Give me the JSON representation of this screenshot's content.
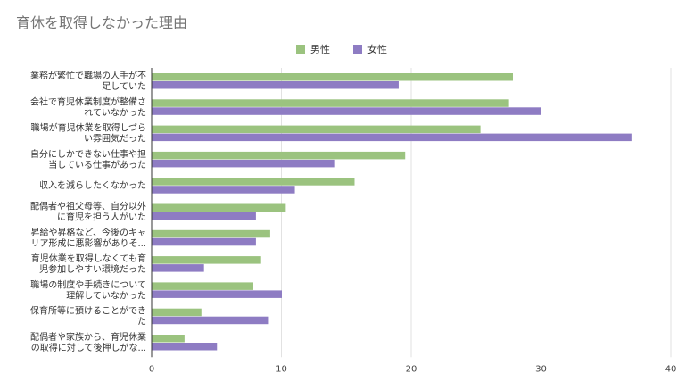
{
  "chart_data": {
    "type": "bar",
    "orientation": "horizontal",
    "title": "育休を取得しなかった理由",
    "categories": [
      [
        "業務が繁忙で職場の人手が不",
        "足していた"
      ],
      [
        "会社で育児休業制度が整備さ",
        "れていなかった"
      ],
      [
        "職場が育児休業を取得しづら",
        "い雰囲気だった"
      ],
      [
        "自分にしかできない仕事や担",
        "当している仕事があった"
      ],
      [
        "収入を減らしたくなかった"
      ],
      [
        "配偶者や祖父母等、自分以外",
        "に育児を担う人がいた"
      ],
      [
        "昇給や昇格など、今後のキャ",
        "リア形成に悪影響がありそ..."
      ],
      [
        "育児休業を取得しなくても育",
        "児参加しやすい環境だった"
      ],
      [
        "職場の制度や手続きについて",
        "理解していなかった"
      ],
      [
        "保育所等に預けることができ",
        "た"
      ],
      [
        "配偶者や家族から、育児休業",
        "の取得に対して後押しがな..."
      ]
    ],
    "series": [
      {
        "name": "男性",
        "color": "#9bc37f",
        "values": [
          27.8,
          27.5,
          25.3,
          19.5,
          15.6,
          10.3,
          9.1,
          8.4,
          7.8,
          3.8,
          2.5
        ]
      },
      {
        "name": "女性",
        "color": "#8e7cc3",
        "values": [
          19.0,
          30.0,
          37.0,
          14.1,
          11.0,
          8.0,
          8.0,
          4.0,
          10.0,
          9.0,
          5.0
        ]
      }
    ],
    "xlim": [
      0,
      40
    ],
    "xticks": [
      0,
      10,
      20,
      30,
      40
    ],
    "grid": true,
    "legend": "top-center"
  }
}
